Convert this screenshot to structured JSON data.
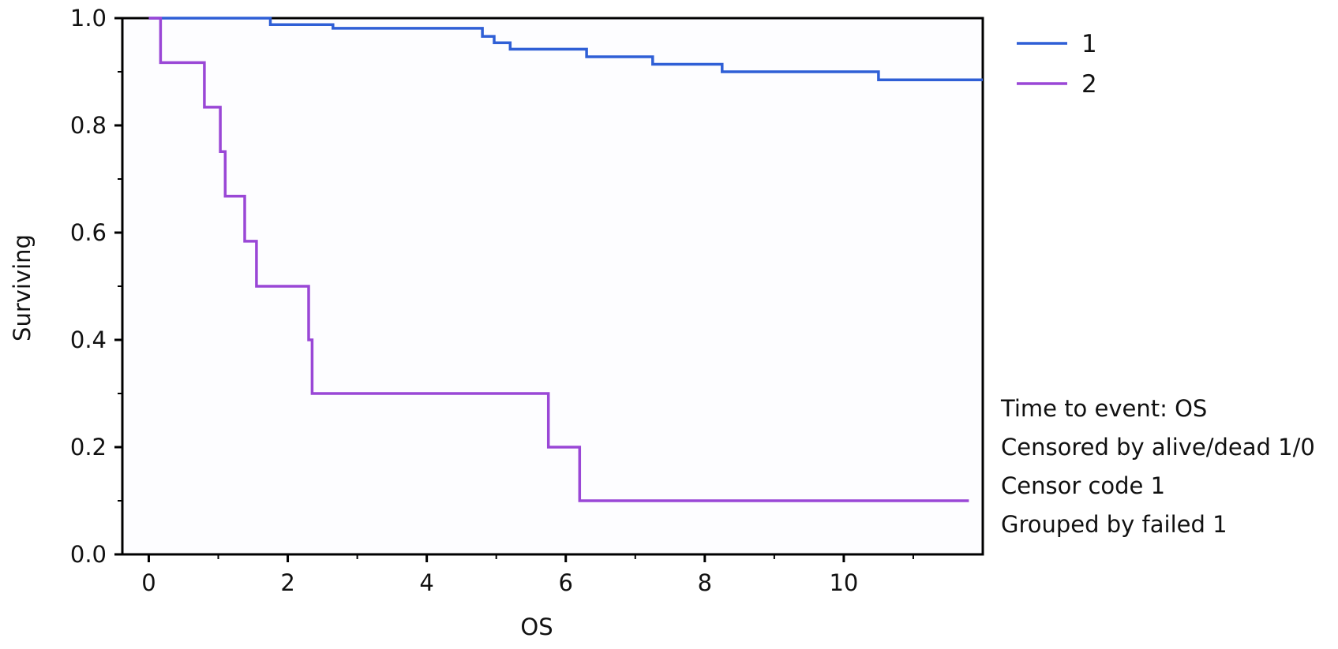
{
  "chart_data": {
    "type": "line",
    "xlabel": "OS",
    "ylabel": "Surviving",
    "xlim": [
      -0.38,
      12.0
    ],
    "ylim": [
      0.0,
      1.0
    ],
    "xticks": [
      0,
      2,
      4,
      6,
      8,
      10
    ],
    "xtick_labels": [
      "0",
      "2",
      "4",
      "6",
      "8",
      "10"
    ],
    "yticks": [
      0.0,
      0.2,
      0.4,
      0.6,
      0.8,
      1.0
    ],
    "ytick_labels": [
      "0.0",
      "0.2",
      "0.4",
      "0.6",
      "0.8",
      "1.0"
    ],
    "grid": false,
    "legend_position": "top-right",
    "series": [
      {
        "name": "1",
        "color": "#2f5fd6",
        "step": true,
        "x": [
          0.0,
          1.75,
          2.65,
          4.8,
          4.97,
          5.2,
          6.3,
          7.25,
          8.25,
          10.5,
          12.0
        ],
        "y": [
          1.0,
          0.988,
          0.981,
          0.966,
          0.954,
          0.942,
          0.928,
          0.914,
          0.9,
          0.885,
          0.885
        ]
      },
      {
        "name": "2",
        "color": "#9a47d6",
        "step": true,
        "x": [
          0.0,
          0.17,
          0.8,
          1.03,
          1.1,
          1.38,
          1.55,
          2.3,
          2.35,
          5.75,
          6.2,
          11.8
        ],
        "y": [
          1.0,
          0.917,
          0.834,
          0.751,
          0.668,
          0.584,
          0.5,
          0.4,
          0.3,
          0.2,
          0.1,
          0.1
        ]
      }
    ],
    "annotations": [
      "Time to event: OS",
      "Censored by alive/dead 1/0",
      "Censor code 1",
      "Grouped by failed 1"
    ]
  }
}
